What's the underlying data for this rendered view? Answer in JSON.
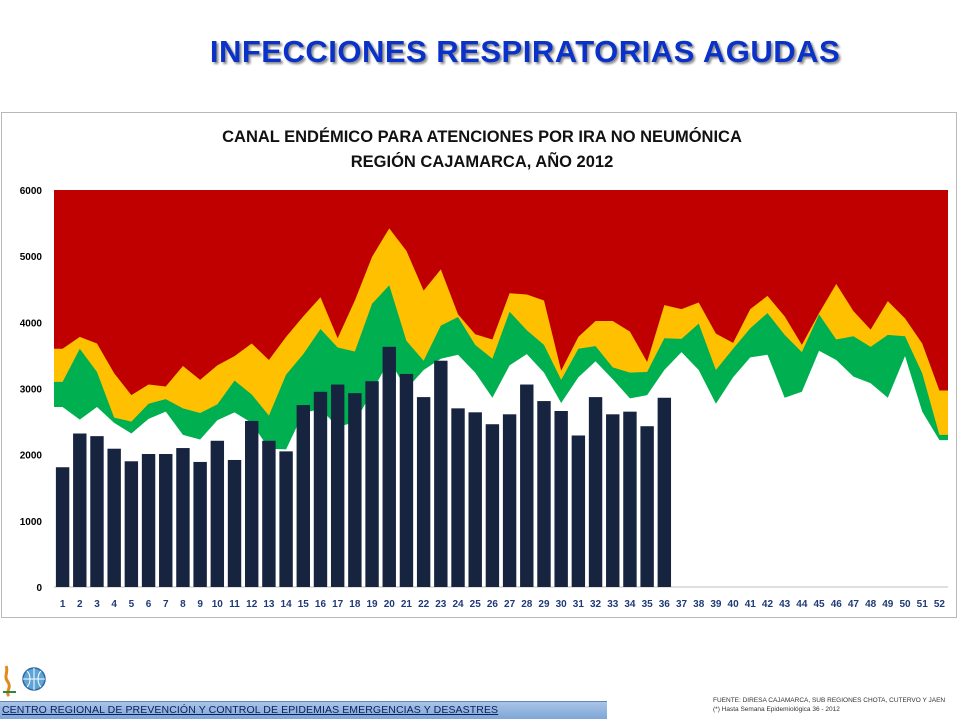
{
  "slide": {
    "title": "INFECCIONES RESPIRATORIAS AGUDAS",
    "footer": "CENTRO REGIONAL DE PREVENCIÓN Y CONTROL DE EPIDEMIAS EMERGENCIAS Y DESASTRES",
    "source_line1": "FUENTE: DIRESA CAJAMARCA, SUB REGIONES CHOTA, CUTERVO Y JAEN",
    "source_line2": "(*) Hasta Semana Epidemiológica 36 - 2012"
  },
  "chart_data": {
    "type": "area",
    "title_line1": "CANAL ENDÉMICO PARA ATENCIONES POR IRA NO NEUMÓNICA",
    "title_line2": "REGIÓN CAJAMARCA, AÑO 2012",
    "xlabel": "",
    "ylabel": "",
    "ylim": [
      0,
      6000
    ],
    "yticks": [
      0,
      1000,
      2000,
      3000,
      4000,
      5000,
      6000
    ],
    "x": [
      1,
      2,
      3,
      4,
      5,
      6,
      7,
      8,
      9,
      10,
      11,
      12,
      13,
      14,
      15,
      16,
      17,
      18,
      19,
      20,
      21,
      22,
      23,
      24,
      25,
      26,
      27,
      28,
      29,
      30,
      31,
      32,
      33,
      34,
      35,
      36,
      37,
      38,
      39,
      40,
      41,
      42,
      43,
      44,
      45,
      46,
      47,
      48,
      49,
      50,
      51,
      52
    ],
    "colors": {
      "epidemic": "#c00000",
      "alarm": "#ffc000",
      "security": "#00b050",
      "success": "#ffffff",
      "cases": "#17243f"
    },
    "zones": {
      "top": 6000,
      "upper": [
        3600,
        3780,
        3680,
        3230,
        2900,
        3060,
        3030,
        3340,
        3130,
        3350,
        3490,
        3680,
        3430,
        3780,
        4090,
        4380,
        3760,
        4330,
        4990,
        5420,
        5080,
        4480,
        4800,
        4120,
        3820,
        3740,
        4440,
        4420,
        4330,
        3270,
        3780,
        4020,
        4020,
        3860,
        3400,
        4260,
        4200,
        4300,
        3830,
        3690,
        4200,
        4400,
        4090,
        3660,
        4140,
        4580,
        4170,
        3890,
        4320,
        4060,
        3680,
        2970
      ],
      "middle": [
        3100,
        3600,
        3250,
        2560,
        2500,
        2770,
        2840,
        2700,
        2630,
        2760,
        3120,
        2910,
        2590,
        3210,
        3520,
        3900,
        3620,
        3560,
        4280,
        4560,
        3720,
        3420,
        3950,
        4080,
        3660,
        3450,
        4160,
        3880,
        3660,
        3130,
        3600,
        3640,
        3320,
        3240,
        3250,
        3760,
        3750,
        3980,
        3280,
        3600,
        3910,
        4140,
        3810,
        3550,
        4120,
        3740,
        3790,
        3630,
        3810,
        3790,
        3230,
        2300
      ],
      "lower": [
        2720,
        2530,
        2720,
        2480,
        2320,
        2540,
        2650,
        2300,
        2230,
        2520,
        2640,
        2480,
        2090,
        2080,
        2630,
        2690,
        2420,
        2490,
        2950,
        3430,
        2990,
        3280,
        3450,
        3510,
        3240,
        2860,
        3350,
        3520,
        3240,
        2780,
        3170,
        3410,
        3140,
        2850,
        2900,
        3280,
        3550,
        3280,
        2770,
        3170,
        3470,
        3510,
        2860,
        2950,
        3570,
        3430,
        3180,
        3080,
        2860,
        3490,
        2650,
        2220
      ]
    },
    "cases": {
      "weeks": [
        1,
        2,
        3,
        4,
        5,
        6,
        7,
        8,
        9,
        10,
        11,
        12,
        13,
        14,
        15,
        16,
        17,
        18,
        19,
        20,
        21,
        22,
        23,
        24,
        25,
        26,
        27,
        28,
        29,
        30,
        31,
        32,
        33,
        34,
        35,
        36
      ],
      "values": [
        1810,
        2320,
        2280,
        2090,
        1900,
        2010,
        2010,
        2100,
        1890,
        2210,
        1920,
        2510,
        2210,
        2050,
        2750,
        2950,
        3060,
        2930,
        3110,
        3630,
        3220,
        2870,
        3420,
        2700,
        2640,
        2460,
        2610,
        3060,
        2810,
        2660,
        2290,
        2870,
        2610,
        2650,
        2430,
        2860
      ]
    }
  }
}
